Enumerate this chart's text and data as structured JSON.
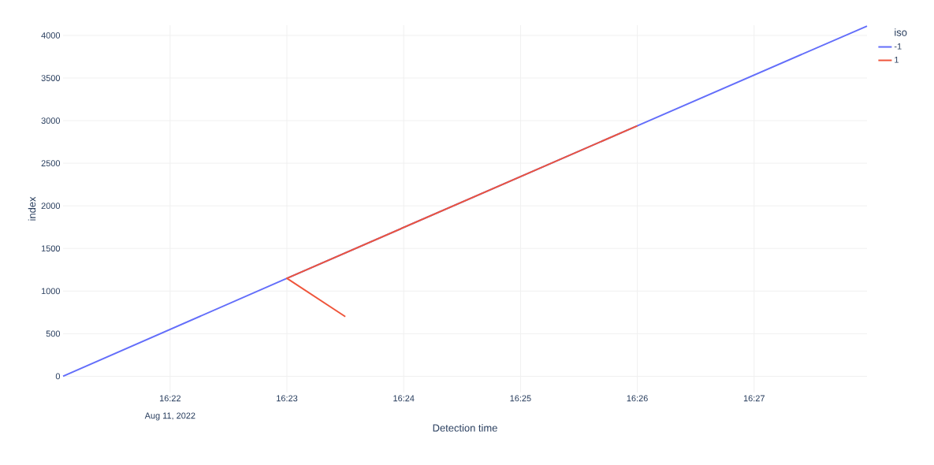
{
  "chart_data": {
    "type": "line",
    "xlabel": "Detection time",
    "ylabel": "index",
    "legend_title": "iso",
    "xlim": [
      "2022-08-11T16:21:05",
      "2022-08-11T16:27:58"
    ],
    "xticks": [
      {
        "value": "2022-08-11T16:22",
        "label": "16:22"
      },
      {
        "value": "2022-08-11T16:23",
        "label": "16:23"
      },
      {
        "value": "2022-08-11T16:24",
        "label": "16:24"
      },
      {
        "value": "2022-08-11T16:25",
        "label": "16:25"
      },
      {
        "value": "2022-08-11T16:26",
        "label": "16:26"
      },
      {
        "value": "2022-08-11T16:27",
        "label": "16:27"
      }
    ],
    "ylim": [
      -190,
      4120
    ],
    "yticks": [
      0,
      500,
      1000,
      1500,
      2000,
      2500,
      3000,
      3500,
      4000
    ],
    "annotations": [
      "Aug 11, 2022"
    ],
    "series": [
      {
        "name": "-1",
        "color": "#636efa",
        "x": [
          "2022-08-11T16:21:05",
          "2022-08-11T16:23",
          "2022-08-11T16:26",
          "2022-08-11T16:27:58"
        ],
        "values": [
          0,
          1150,
          2940,
          4110
        ]
      },
      {
        "name": "1",
        "color": "#ef553b",
        "x": [
          "2022-08-11T16:23:30",
          "2022-08-11T16:23",
          "2022-08-11T16:26"
        ],
        "values": [
          700,
          1150,
          2940
        ]
      }
    ],
    "grid": true,
    "legend": "top right",
    "marker": "none",
    "line_style": "solid"
  }
}
